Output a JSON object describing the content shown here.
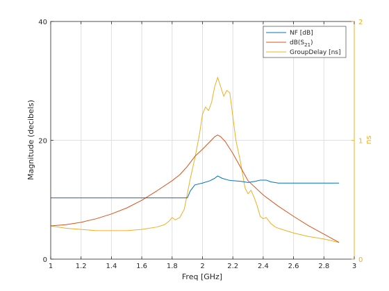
{
  "chart_data": {
    "type": "line",
    "xlabel": "Freq [GHz]",
    "ylabel_left": "Magnitude (decibels)",
    "ylabel_right": "ns",
    "xlim": [
      1,
      3
    ],
    "ylim_left": [
      0,
      40
    ],
    "ylim_right": [
      0,
      2
    ],
    "x_ticks": [
      "1",
      "1.2",
      "1.4",
      "1.6",
      "1.8",
      "2",
      "2.2",
      "2.4",
      "2.6",
      "2.8",
      "3"
    ],
    "y_ticks_left": [
      "0",
      "20",
      "40"
    ],
    "y_ticks_right": [
      "0",
      "1",
      "2"
    ],
    "grid": true,
    "legend_position": "top-right",
    "colors": {
      "nf": "#0072bd",
      "s21": "#d95319",
      "gd": "#edb120",
      "right_axis": "#edb120"
    },
    "series": [
      {
        "name": "NF [dB]",
        "axis": "left",
        "x": [
          1.0,
          1.5,
          1.9,
          1.92,
          1.95,
          2.0,
          2.05,
          2.08,
          2.1,
          2.13,
          2.17,
          2.2,
          2.25,
          2.3,
          2.35,
          2.38,
          2.42,
          2.45,
          2.5,
          2.6,
          2.7,
          2.8,
          2.9
        ],
        "y": [
          10.3,
          10.3,
          10.3,
          11.5,
          12.5,
          12.8,
          13.2,
          13.6,
          14.0,
          13.6,
          13.3,
          13.2,
          13.1,
          12.9,
          13.1,
          13.3,
          13.3,
          13.0,
          12.8,
          12.8,
          12.8,
          12.8,
          12.8
        ]
      },
      {
        "name": "dB(S21)",
        "axis": "left",
        "x": [
          1.0,
          1.1,
          1.2,
          1.3,
          1.4,
          1.5,
          1.6,
          1.7,
          1.8,
          1.85,
          1.9,
          1.95,
          2.0,
          2.05,
          2.08,
          2.1,
          2.12,
          2.15,
          2.2,
          2.25,
          2.3,
          2.4,
          2.5,
          2.6,
          2.7,
          2.8,
          2.9
        ],
        "y": [
          5.6,
          5.8,
          6.2,
          6.8,
          7.6,
          8.6,
          9.9,
          11.5,
          13.2,
          14.2,
          15.6,
          17.3,
          18.5,
          19.8,
          20.6,
          20.9,
          20.6,
          19.8,
          17.8,
          15.5,
          13.2,
          10.8,
          8.9,
          7.2,
          5.6,
          4.2,
          2.8
        ]
      },
      {
        "name": "GroupDelay [ns]",
        "axis": "right",
        "x": [
          1.0,
          1.1,
          1.2,
          1.3,
          1.4,
          1.5,
          1.6,
          1.65,
          1.7,
          1.75,
          1.78,
          1.8,
          1.82,
          1.85,
          1.88,
          1.9,
          1.92,
          1.95,
          1.98,
          2.0,
          2.02,
          2.04,
          2.06,
          2.08,
          2.1,
          2.12,
          2.14,
          2.16,
          2.18,
          2.2,
          2.22,
          2.25,
          2.28,
          2.3,
          2.32,
          2.34,
          2.36,
          2.38,
          2.4,
          2.42,
          2.45,
          2.48,
          2.5,
          2.55,
          2.6,
          2.7,
          2.8,
          2.9
        ],
        "y": [
          0.28,
          0.26,
          0.25,
          0.24,
          0.24,
          0.24,
          0.25,
          0.26,
          0.27,
          0.29,
          0.32,
          0.35,
          0.33,
          0.35,
          0.42,
          0.55,
          0.68,
          0.85,
          1.05,
          1.22,
          1.28,
          1.25,
          1.32,
          1.45,
          1.53,
          1.45,
          1.37,
          1.42,
          1.4,
          1.2,
          1.0,
          0.82,
          0.6,
          0.55,
          0.58,
          0.52,
          0.45,
          0.36,
          0.34,
          0.35,
          0.3,
          0.27,
          0.26,
          0.24,
          0.22,
          0.19,
          0.17,
          0.14
        ]
      }
    ]
  }
}
